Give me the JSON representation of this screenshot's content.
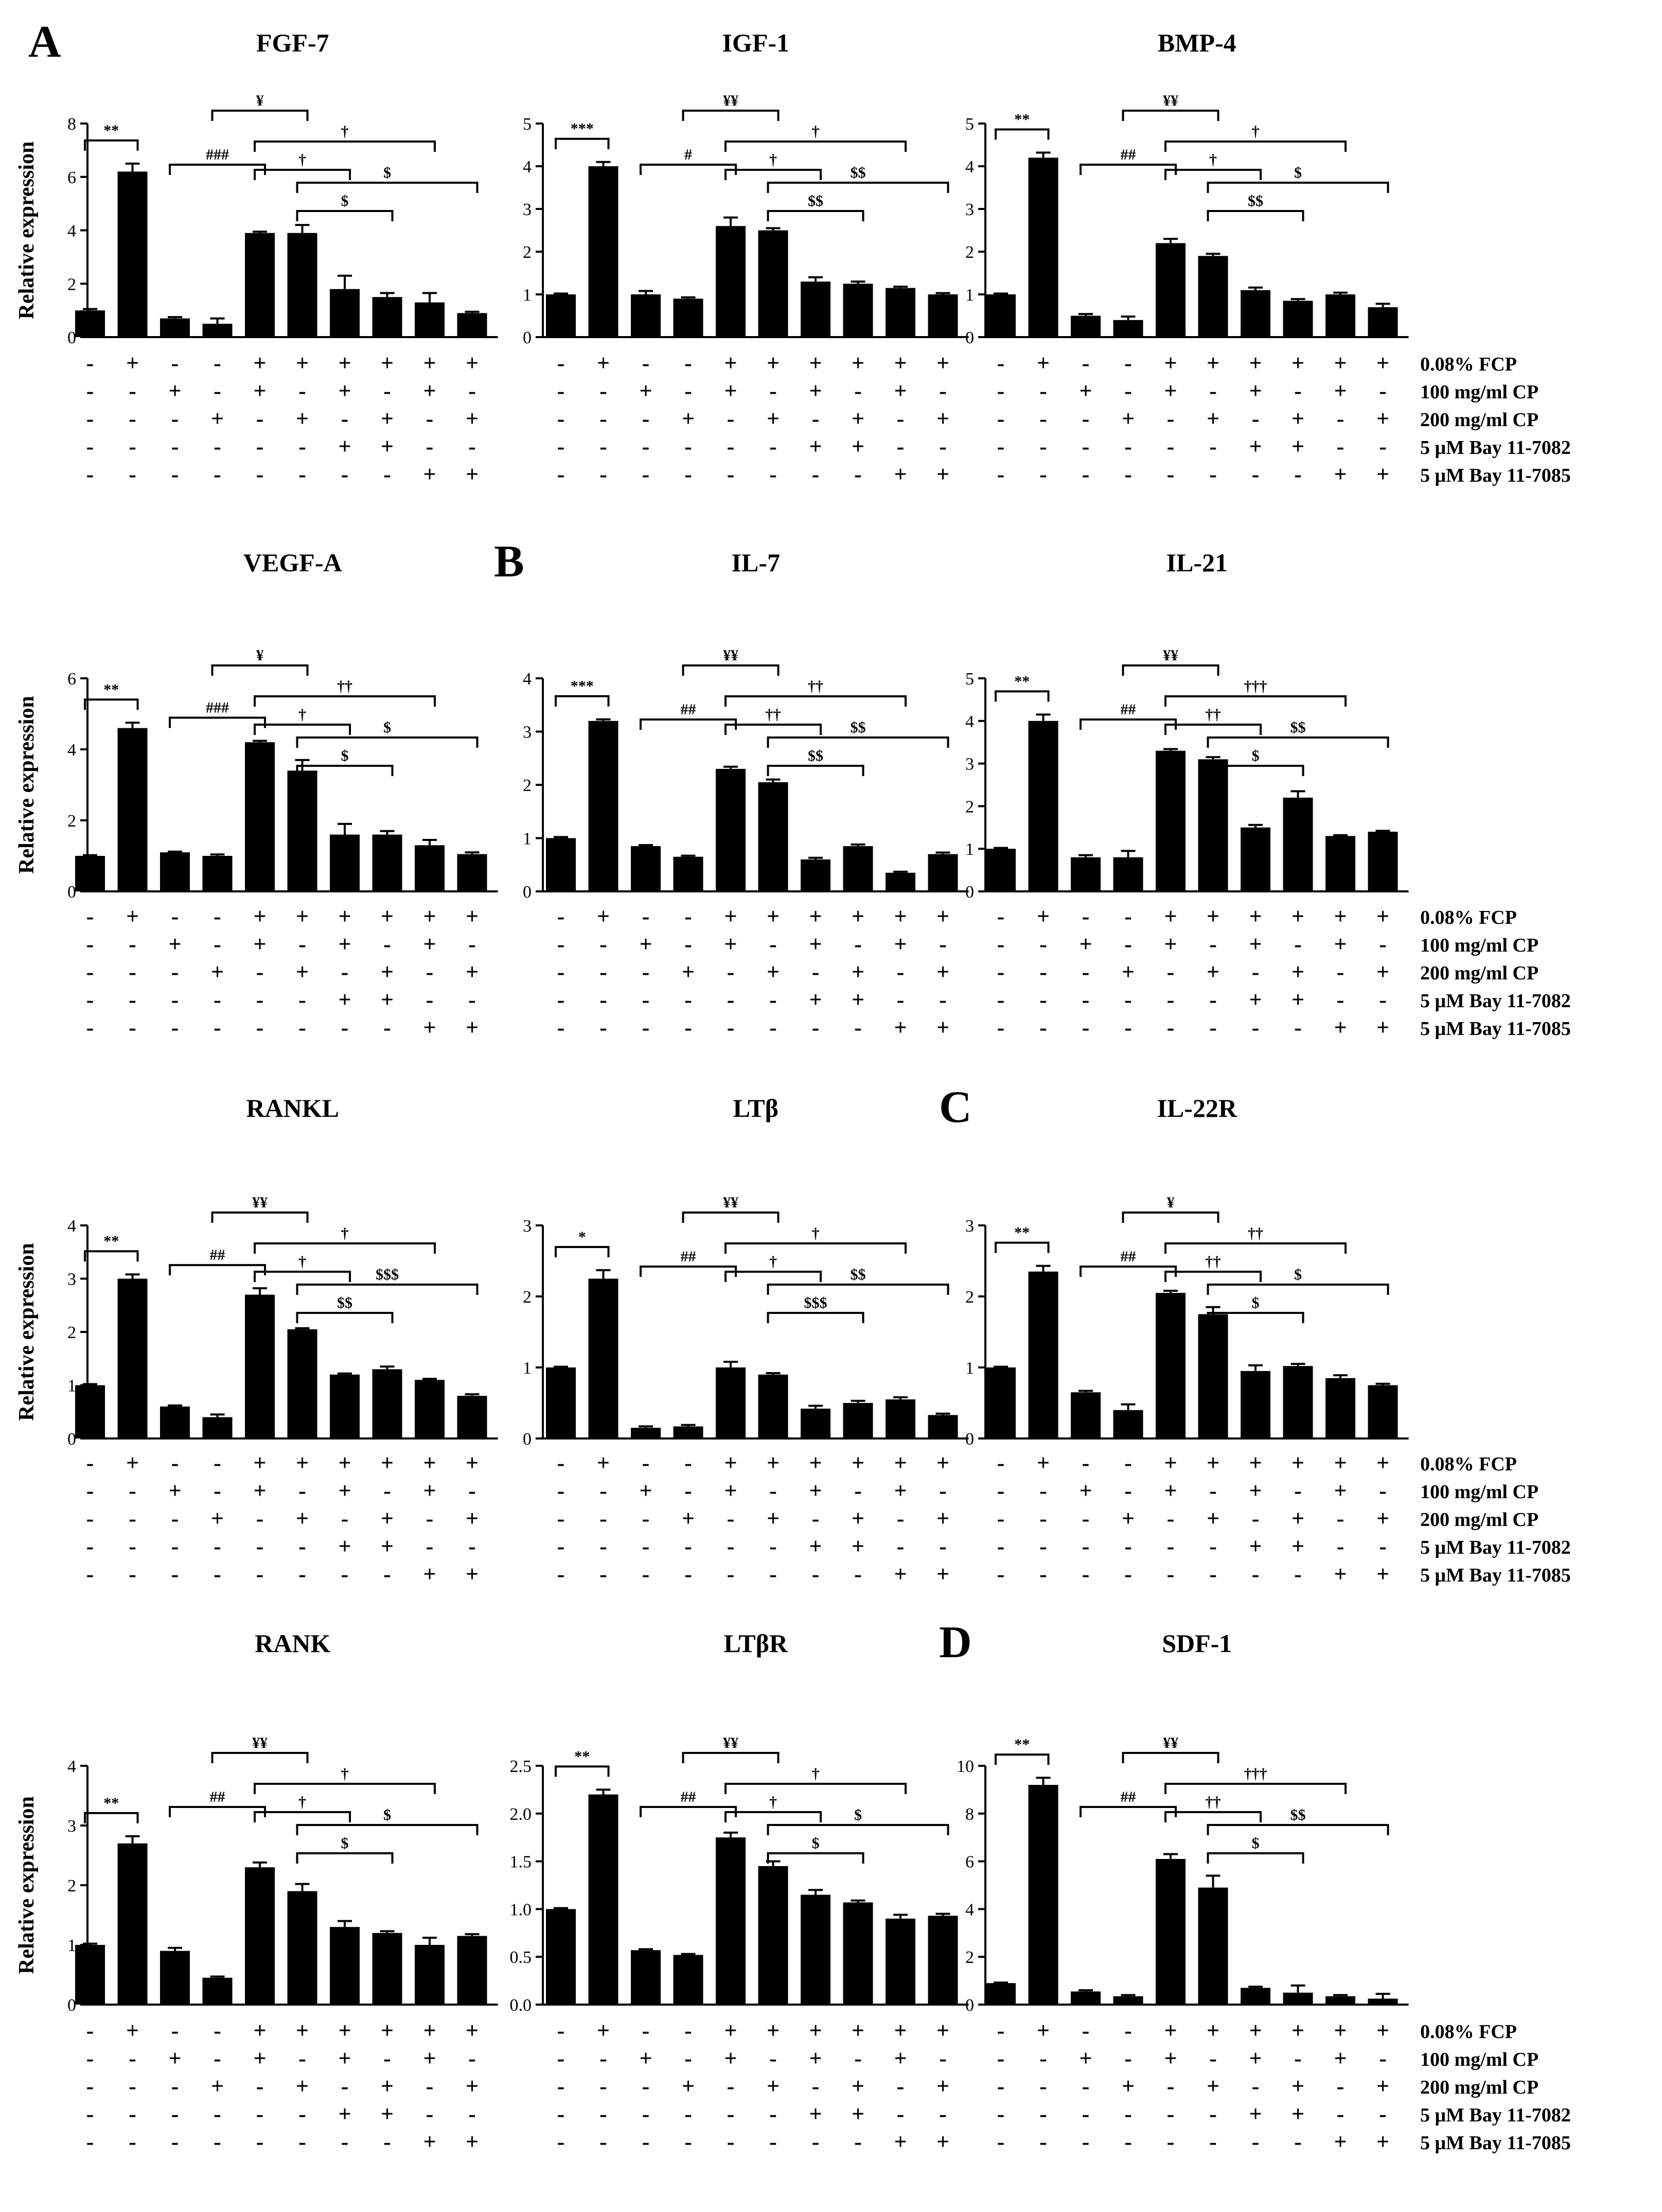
{
  "figure": {
    "panel_labels": [
      "A",
      "B",
      "C",
      "D"
    ],
    "ylabel": "Relative expression"
  },
  "conditions": {
    "labels": [
      "0.08% FCP",
      "100 mg/ml CP",
      "200 mg/ml CP",
      "5 μM Bay 11-7082",
      "5 μM Bay 11-7085"
    ],
    "matrix": [
      [
        "-",
        "+",
        "-",
        "-",
        "+",
        "+",
        "+",
        "+",
        "+",
        "+"
      ],
      [
        "-",
        "-",
        "+",
        "-",
        "+",
        "-",
        "+",
        "-",
        "+",
        "-"
      ],
      [
        "-",
        "-",
        "-",
        "+",
        "-",
        "+",
        "-",
        "+",
        "-",
        "+"
      ],
      [
        "-",
        "-",
        "-",
        "-",
        "-",
        "-",
        "+",
        "+",
        "-",
        "-"
      ],
      [
        "-",
        "-",
        "-",
        "-",
        "-",
        "-",
        "-",
        "-",
        "+",
        "+"
      ]
    ]
  },
  "chart_data": [
    {
      "type": "bar",
      "title": "FGF-7",
      "ylim": [
        0,
        8
      ],
      "yticks": [
        "0",
        "2",
        "4",
        "6",
        "8"
      ],
      "values": [
        1.0,
        6.2,
        0.7,
        0.5,
        3.9,
        3.9,
        1.8,
        1.5,
        1.3,
        0.9
      ],
      "errors": [
        0.05,
        0.3,
        0.05,
        0.2,
        0.05,
        0.3,
        0.5,
        0.15,
        0.35,
        0.05
      ],
      "sig": [
        {
          "a": 0,
          "b": 1,
          "label": "**"
        },
        {
          "a": 2,
          "b": 4,
          "label": "###"
        },
        {
          "a": 3,
          "b": 5,
          "label": "¥"
        },
        {
          "a": 4,
          "b": 6,
          "label": "†"
        },
        {
          "a": 4,
          "b": 8,
          "label": "†"
        },
        {
          "a": 5,
          "b": 7,
          "label": "$"
        },
        {
          "a": 5,
          "b": 9,
          "label": "$"
        }
      ]
    },
    {
      "type": "bar",
      "title": "IGF-1",
      "ylim": [
        0,
        5
      ],
      "yticks": [
        "0",
        "1",
        "2",
        "3",
        "4",
        "5"
      ],
      "values": [
        1.0,
        4.0,
        1.0,
        0.9,
        2.6,
        2.5,
        1.3,
        1.25,
        1.15,
        1.0
      ],
      "errors": [
        0.02,
        0.1,
        0.08,
        0.03,
        0.2,
        0.05,
        0.1,
        0.05,
        0.03,
        0.03
      ],
      "sig": [
        {
          "a": 0,
          "b": 1,
          "label": "***"
        },
        {
          "a": 2,
          "b": 4,
          "label": "#"
        },
        {
          "a": 3,
          "b": 5,
          "label": "¥¥"
        },
        {
          "a": 4,
          "b": 6,
          "label": "†"
        },
        {
          "a": 4,
          "b": 8,
          "label": "†"
        },
        {
          "a": 5,
          "b": 7,
          "label": "$$"
        },
        {
          "a": 5,
          "b": 9,
          "label": "$$"
        }
      ]
    },
    {
      "type": "bar",
      "title": "BMP-4",
      "ylim": [
        0,
        5
      ],
      "yticks": [
        "0",
        "1",
        "2",
        "3",
        "4",
        "5"
      ],
      "values": [
        1.0,
        4.2,
        0.5,
        0.4,
        2.2,
        1.9,
        1.1,
        0.85,
        1.0,
        0.7
      ],
      "errors": [
        0.02,
        0.12,
        0.04,
        0.08,
        0.1,
        0.05,
        0.06,
        0.04,
        0.04,
        0.08
      ],
      "sig": [
        {
          "a": 0,
          "b": 1,
          "label": "**"
        },
        {
          "a": 2,
          "b": 4,
          "label": "##"
        },
        {
          "a": 3,
          "b": 5,
          "label": "¥¥"
        },
        {
          "a": 4,
          "b": 6,
          "label": "†"
        },
        {
          "a": 4,
          "b": 8,
          "label": "†"
        },
        {
          "a": 5,
          "b": 7,
          "label": "$$"
        },
        {
          "a": 5,
          "b": 9,
          "label": "$"
        }
      ]
    },
    {
      "type": "bar",
      "title": "VEGF-A",
      "ylim": [
        0,
        6
      ],
      "yticks": [
        "0",
        "2",
        "4",
        "6"
      ],
      "values": [
        1.0,
        4.6,
        1.1,
        1.0,
        4.2,
        3.4,
        1.6,
        1.6,
        1.3,
        1.05
      ],
      "errors": [
        0.02,
        0.15,
        0.02,
        0.04,
        0.04,
        0.3,
        0.3,
        0.1,
        0.15,
        0.05
      ],
      "sig": [
        {
          "a": 0,
          "b": 1,
          "label": "**"
        },
        {
          "a": 2,
          "b": 4,
          "label": "###"
        },
        {
          "a": 3,
          "b": 5,
          "label": "¥"
        },
        {
          "a": 4,
          "b": 6,
          "label": "†"
        },
        {
          "a": 4,
          "b": 8,
          "label": "††"
        },
        {
          "a": 5,
          "b": 7,
          "label": "$"
        },
        {
          "a": 5,
          "b": 9,
          "label": "$"
        }
      ]
    },
    {
      "type": "bar",
      "title": "IL-7",
      "ylim": [
        0,
        4
      ],
      "yticks": [
        "0",
        "1",
        "2",
        "3",
        "4"
      ],
      "values": [
        1.0,
        3.2,
        0.85,
        0.65,
        2.3,
        2.05,
        0.6,
        0.85,
        0.35,
        0.7
      ],
      "errors": [
        0.02,
        0.03,
        0.02,
        0.02,
        0.04,
        0.05,
        0.03,
        0.03,
        0.02,
        0.03
      ],
      "sig": [
        {
          "a": 0,
          "b": 1,
          "label": "***"
        },
        {
          "a": 2,
          "b": 4,
          "label": "##"
        },
        {
          "a": 3,
          "b": 5,
          "label": "¥¥"
        },
        {
          "a": 4,
          "b": 6,
          "label": "††"
        },
        {
          "a": 4,
          "b": 8,
          "label": "††"
        },
        {
          "a": 5,
          "b": 7,
          "label": "$$"
        },
        {
          "a": 5,
          "b": 9,
          "label": "$$"
        }
      ]
    },
    {
      "type": "bar",
      "title": "IL-21",
      "ylim": [
        0,
        5
      ],
      "yticks": [
        "0",
        "1",
        "2",
        "3",
        "4",
        "5"
      ],
      "values": [
        1.0,
        4.0,
        0.8,
        0.8,
        3.3,
        3.1,
        1.5,
        2.2,
        1.3,
        1.4
      ],
      "errors": [
        0.02,
        0.15,
        0.05,
        0.15,
        0.04,
        0.05,
        0.06,
        0.15,
        0.02,
        0.02
      ],
      "sig": [
        {
          "a": 0,
          "b": 1,
          "label": "**"
        },
        {
          "a": 2,
          "b": 4,
          "label": "##"
        },
        {
          "a": 3,
          "b": 5,
          "label": "¥¥"
        },
        {
          "a": 4,
          "b": 6,
          "label": "††"
        },
        {
          "a": 4,
          "b": 8,
          "label": "†††"
        },
        {
          "a": 5,
          "b": 7,
          "label": "$"
        },
        {
          "a": 5,
          "b": 9,
          "label": "$$"
        }
      ]
    },
    {
      "type": "bar",
      "title": "RANKL",
      "ylim": [
        0,
        4
      ],
      "yticks": [
        "0",
        "1",
        "2",
        "3",
        "4"
      ],
      "values": [
        1.0,
        3.0,
        0.6,
        0.4,
        2.7,
        2.05,
        1.2,
        1.3,
        1.1,
        0.8
      ],
      "errors": [
        0.02,
        0.08,
        0.02,
        0.05,
        0.12,
        0.02,
        0.02,
        0.05,
        0.02,
        0.03
      ],
      "sig": [
        {
          "a": 0,
          "b": 1,
          "label": "**"
        },
        {
          "a": 2,
          "b": 4,
          "label": "##"
        },
        {
          "a": 3,
          "b": 5,
          "label": "¥¥"
        },
        {
          "a": 4,
          "b": 6,
          "label": "†"
        },
        {
          "a": 4,
          "b": 8,
          "label": "†"
        },
        {
          "a": 5,
          "b": 7,
          "label": "$$"
        },
        {
          "a": 5,
          "b": 9,
          "label": "$$$"
        }
      ]
    },
    {
      "type": "bar",
      "title": "LTβ",
      "ylim": [
        0,
        3
      ],
      "yticks": [
        "0",
        "1",
        "2",
        "3"
      ],
      "values": [
        1.0,
        2.25,
        0.15,
        0.17,
        1.0,
        0.9,
        0.42,
        0.5,
        0.55,
        0.33
      ],
      "errors": [
        0.01,
        0.12,
        0.02,
        0.02,
        0.08,
        0.02,
        0.04,
        0.03,
        0.03,
        0.02
      ],
      "sig": [
        {
          "a": 0,
          "b": 1,
          "label": "*"
        },
        {
          "a": 2,
          "b": 4,
          "label": "##"
        },
        {
          "a": 3,
          "b": 5,
          "label": "¥¥"
        },
        {
          "a": 4,
          "b": 6,
          "label": "†"
        },
        {
          "a": 4,
          "b": 8,
          "label": "†"
        },
        {
          "a": 5,
          "b": 7,
          "label": "$$$"
        },
        {
          "a": 5,
          "b": 9,
          "label": "$$"
        }
      ]
    },
    {
      "type": "bar",
      "title": "IL-22R",
      "ylim": [
        0,
        3
      ],
      "yticks": [
        "0",
        "1",
        "2",
        "3"
      ],
      "values": [
        1.0,
        2.35,
        0.65,
        0.4,
        2.05,
        1.75,
        0.95,
        1.02,
        0.85,
        0.75
      ],
      "errors": [
        0.01,
        0.08,
        0.02,
        0.08,
        0.03,
        0.1,
        0.08,
        0.03,
        0.04,
        0.02
      ],
      "sig": [
        {
          "a": 0,
          "b": 1,
          "label": "**"
        },
        {
          "a": 2,
          "b": 4,
          "label": "##"
        },
        {
          "a": 3,
          "b": 5,
          "label": "¥"
        },
        {
          "a": 4,
          "b": 6,
          "label": "††"
        },
        {
          "a": 4,
          "b": 8,
          "label": "††"
        },
        {
          "a": 5,
          "b": 7,
          "label": "$"
        },
        {
          "a": 5,
          "b": 9,
          "label": "$"
        }
      ]
    },
    {
      "type": "bar",
      "title": "RANK",
      "ylim": [
        0,
        4
      ],
      "yticks": [
        "0",
        "1",
        "2",
        "3",
        "4"
      ],
      "values": [
        1.0,
        2.7,
        0.9,
        0.45,
        2.3,
        1.9,
        1.3,
        1.2,
        1.0,
        1.15
      ],
      "errors": [
        0.02,
        0.12,
        0.05,
        0.02,
        0.08,
        0.12,
        0.1,
        0.03,
        0.12,
        0.03
      ],
      "sig": [
        {
          "a": 0,
          "b": 1,
          "label": "**"
        },
        {
          "a": 2,
          "b": 4,
          "label": "##"
        },
        {
          "a": 3,
          "b": 5,
          "label": "¥¥"
        },
        {
          "a": 4,
          "b": 6,
          "label": "†"
        },
        {
          "a": 4,
          "b": 8,
          "label": "†"
        },
        {
          "a": 5,
          "b": 7,
          "label": "$"
        },
        {
          "a": 5,
          "b": 9,
          "label": "$"
        }
      ]
    },
    {
      "type": "bar",
      "title": "LTβR",
      "ylim": [
        0,
        2.5
      ],
      "yticks": [
        "0.0",
        "0.5",
        "1.0",
        "1.5",
        "2.0",
        "2.5"
      ],
      "values": [
        1.0,
        2.2,
        0.57,
        0.52,
        1.75,
        1.45,
        1.15,
        1.07,
        0.9,
        0.93
      ],
      "errors": [
        0.01,
        0.05,
        0.01,
        0.01,
        0.05,
        0.05,
        0.05,
        0.02,
        0.04,
        0.02
      ],
      "sig": [
        {
          "a": 0,
          "b": 1,
          "label": "**"
        },
        {
          "a": 2,
          "b": 4,
          "label": "##"
        },
        {
          "a": 3,
          "b": 5,
          "label": "¥¥"
        },
        {
          "a": 4,
          "b": 6,
          "label": "†"
        },
        {
          "a": 4,
          "b": 8,
          "label": "†"
        },
        {
          "a": 5,
          "b": 7,
          "label": "$"
        },
        {
          "a": 5,
          "b": 9,
          "label": "$"
        }
      ]
    },
    {
      "type": "bar",
      "title": "SDF-1",
      "ylim": [
        0,
        10
      ],
      "yticks": [
        "0",
        "2",
        "4",
        "6",
        "8",
        "10"
      ],
      "values": [
        0.9,
        9.2,
        0.55,
        0.35,
        6.1,
        4.9,
        0.7,
        0.5,
        0.35,
        0.25
      ],
      "errors": [
        0.02,
        0.3,
        0.05,
        0.05,
        0.2,
        0.5,
        0.05,
        0.3,
        0.05,
        0.2
      ],
      "sig": [
        {
          "a": 0,
          "b": 1,
          "label": "**"
        },
        {
          "a": 2,
          "b": 4,
          "label": "##"
        },
        {
          "a": 3,
          "b": 5,
          "label": "¥¥"
        },
        {
          "a": 4,
          "b": 6,
          "label": "††"
        },
        {
          "a": 4,
          "b": 8,
          "label": "†††"
        },
        {
          "a": 5,
          "b": 7,
          "label": "$"
        },
        {
          "a": 5,
          "b": 9,
          "label": "$$"
        }
      ]
    }
  ]
}
